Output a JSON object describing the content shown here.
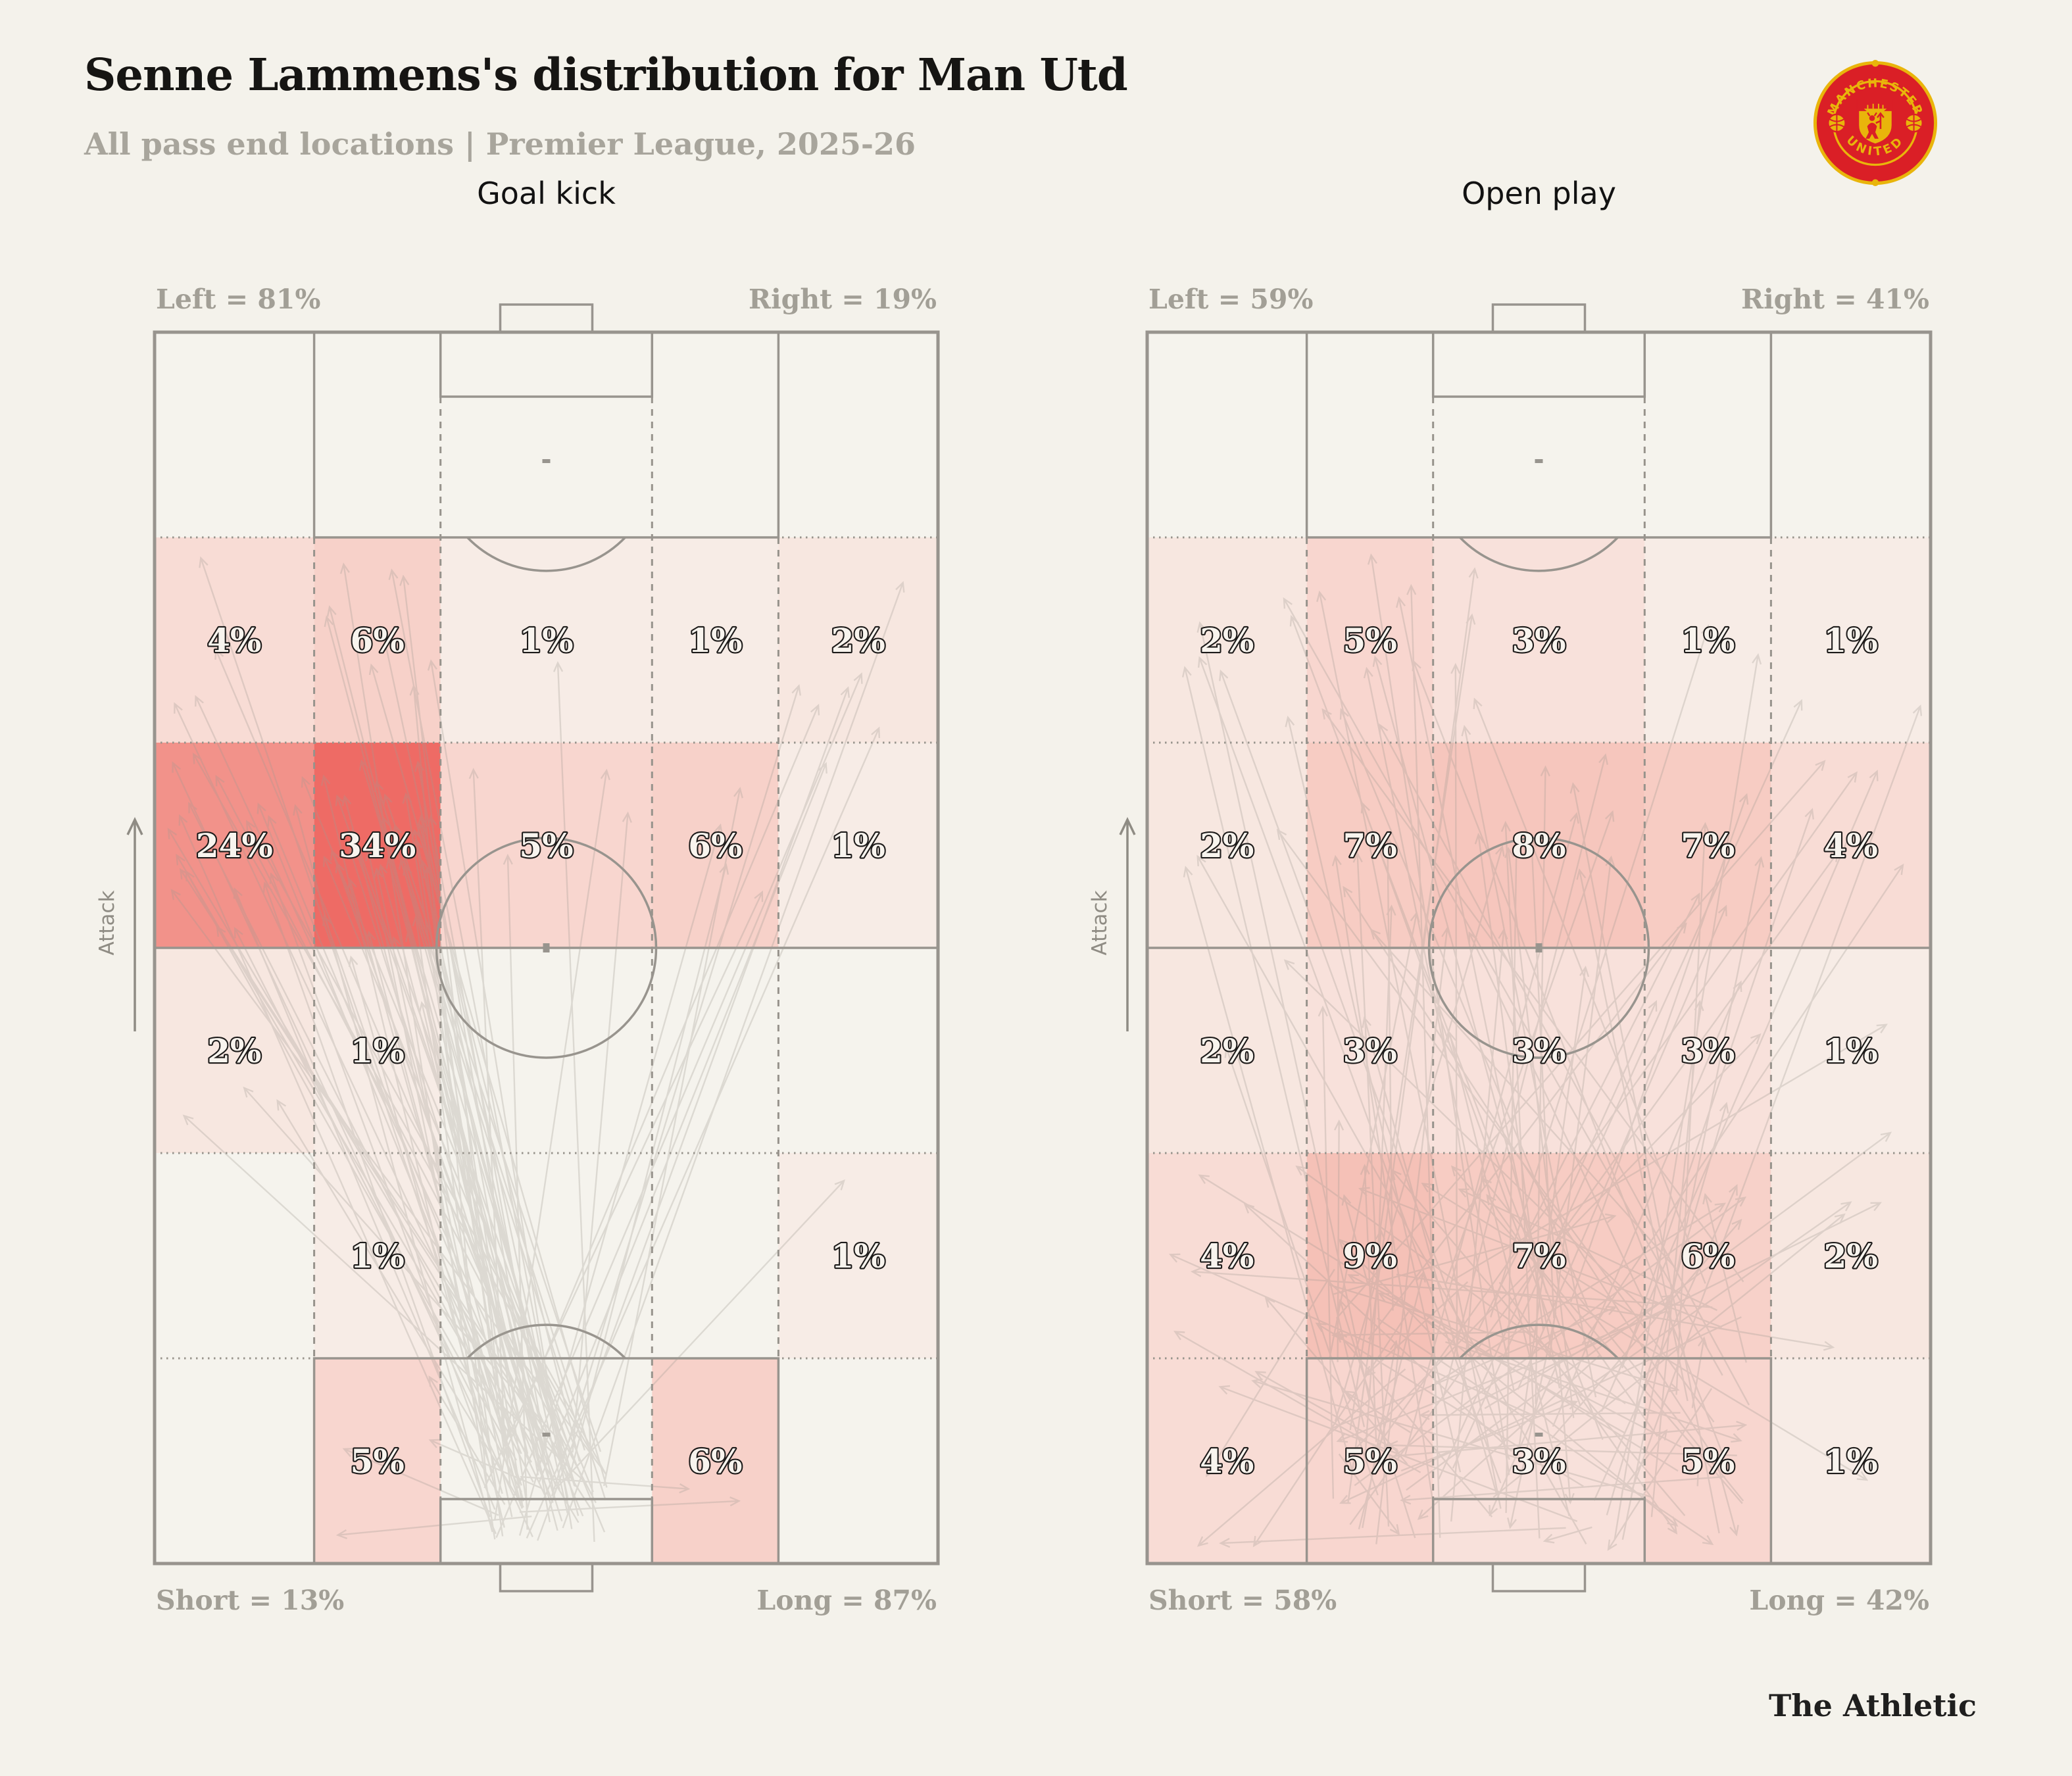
{
  "header": {
    "title": "Senne Lammens's distribution for Man Utd",
    "subtitle": "All pass end locations | Premier League, 2025-26"
  },
  "branding": {
    "footer_brand": "The Athletic",
    "crest_top": "MANCHESTER",
    "crest_bottom": "UNITED"
  },
  "labels": {
    "attack": "Attack",
    "value_suffix": "%"
  },
  "colors": {
    "background": "#f4f2eb",
    "pitch_fill": "#f5f3ed",
    "pitch_line": "#98948e",
    "grid_line": "#97938c",
    "muted_text": "#a29f96",
    "title_text": "#161513",
    "attack_indicator": "#8f8c84",
    "arrow": "#a19b93",
    "crest_red": "#da1f26",
    "crest_gold": "#e9b50b",
    "heat_scale_anchors": [
      [
        0,
        "#f6f0ea"
      ],
      [
        1,
        "#f7ece6"
      ],
      [
        5,
        "#f8d6cf"
      ],
      [
        9,
        "#f5c1b7"
      ],
      [
        24,
        "#f2928a"
      ],
      [
        34,
        "#ee6b65"
      ]
    ]
  },
  "chart_data": [
    {
      "type": "heatmap",
      "title": "Goal kick",
      "summary": {
        "left": "Left = 81%",
        "right": "Right = 19%",
        "short": "Short = 13%",
        "long": "Long = 87%"
      },
      "summary_values": {
        "left_pct": 81,
        "right_pct": 19,
        "short_pct": 13,
        "long_pct": 87
      },
      "zone_rows_attack_first": [
        [
          4,
          6,
          1,
          1,
          2
        ],
        [
          24,
          34,
          5,
          6,
          1
        ],
        [
          2,
          1,
          null,
          null,
          null
        ],
        [
          null,
          1,
          null,
          null,
          1
        ],
        [
          null,
          5,
          null,
          6,
          null
        ]
      ],
      "arrows": {
        "count": 95,
        "seed": 11,
        "origin_x_spread": 190,
        "origin_y_min": 1690,
        "origin_y_max": 1845
      }
    },
    {
      "type": "heatmap",
      "title": "Open play",
      "summary": {
        "left": "Left = 59%",
        "right": "Right = 41%",
        "short": "Short = 58%",
        "long": "Long = 42%"
      },
      "summary_values": {
        "left_pct": 59,
        "right_pct": 41,
        "short_pct": 58,
        "long_pct": 42
      },
      "zone_rows_attack_first": [
        [
          2,
          5,
          3,
          1,
          1
        ],
        [
          2,
          7,
          8,
          7,
          4
        ],
        [
          2,
          3,
          3,
          3,
          1
        ],
        [
          4,
          9,
          7,
          6,
          2
        ],
        [
          4,
          5,
          3,
          5,
          1
        ]
      ],
      "arrows": {
        "count": 150,
        "seed": 23,
        "origin_x_spread": 640,
        "origin_y_min": 1420,
        "origin_y_max": 1845
      }
    }
  ]
}
